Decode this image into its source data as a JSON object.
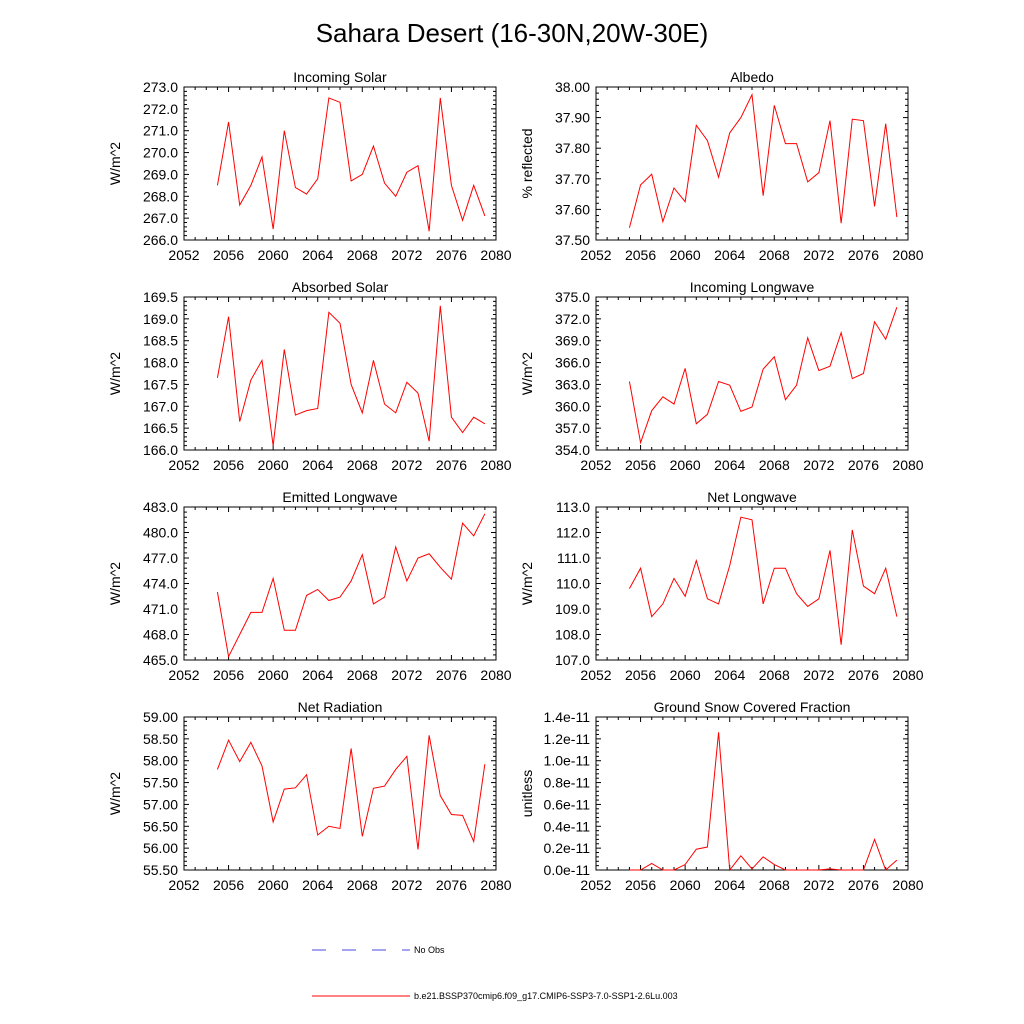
{
  "figure_title": "Sahara Desert (16-30N,20W-30E)",
  "legend": {
    "entries": [
      {
        "label": "No Obs",
        "color": "#4a4ae0",
        "dash": true
      },
      {
        "label": "b.e21.BSSP370cmip6.f09_g17.CMIP6-SSP3-7.0-SSP1-2.6Lu.003",
        "color": "#ff0000",
        "dash": false
      }
    ]
  },
  "chart_data": [
    {
      "type": "line",
      "title": "Incoming Solar",
      "ylabel": "W/m^2",
      "xlim": [
        2052,
        2080
      ],
      "ylim": [
        266,
        273
      ],
      "xticks": [
        2052,
        2056,
        2060,
        2064,
        2068,
        2072,
        2076,
        2080
      ],
      "yticks": [
        266,
        267,
        268,
        269,
        270,
        271,
        272,
        273
      ],
      "ytick_labels": [
        "266.0",
        "267.0",
        "268.0",
        "269.0",
        "270.0",
        "271.0",
        "272.0",
        "273.0"
      ],
      "x": [
        2055,
        2056,
        2057,
        2058,
        2059,
        2060,
        2061,
        2062,
        2063,
        2064,
        2065,
        2066,
        2067,
        2068,
        2069,
        2070,
        2071,
        2072,
        2073,
        2074,
        2075,
        2076,
        2077,
        2078,
        2079
      ],
      "series": [
        {
          "name": "b.e21.BSSP370cmip6.f09_g17.CMIP6-SSP3-7.0-SSP1-2.6Lu.003",
          "color": "#ff0000",
          "values": [
            268.5,
            271.4,
            267.6,
            268.5,
            269.8,
            266.5,
            271.0,
            268.4,
            268.1,
            268.8,
            272.5,
            272.3,
            268.7,
            269.0,
            270.3,
            268.6,
            268.0,
            269.1,
            269.4,
            266.4,
            272.5,
            268.5,
            266.9,
            268.5,
            267.1
          ]
        }
      ]
    },
    {
      "type": "line",
      "title": "Albedo",
      "ylabel": "% reflected",
      "xlim": [
        2052,
        2080
      ],
      "ylim": [
        37.5,
        38.0
      ],
      "xticks": [
        2052,
        2056,
        2060,
        2064,
        2068,
        2072,
        2076,
        2080
      ],
      "yticks": [
        37.5,
        37.6,
        37.7,
        37.8,
        37.9,
        38.0
      ],
      "ytick_labels": [
        "37.50",
        "37.60",
        "37.70",
        "37.80",
        "37.90",
        "38.00"
      ],
      "x": [
        2055,
        2056,
        2057,
        2058,
        2059,
        2060,
        2061,
        2062,
        2063,
        2064,
        2065,
        2066,
        2067,
        2068,
        2069,
        2070,
        2071,
        2072,
        2073,
        2074,
        2075,
        2076,
        2077,
        2078,
        2079
      ],
      "series": [
        {
          "name": "b.e21.BSSP370cmip6.f09_g17.CMIP6-SSP3-7.0-SSP1-2.6Lu.003",
          "color": "#ff0000",
          "values": [
            37.54,
            37.68,
            37.715,
            37.56,
            37.67,
            37.625,
            37.875,
            37.825,
            37.705,
            37.85,
            37.9,
            37.975,
            37.645,
            37.94,
            37.815,
            37.815,
            37.69,
            37.72,
            37.89,
            37.555,
            37.895,
            37.89,
            37.61,
            37.88,
            37.575
          ]
        }
      ]
    },
    {
      "type": "line",
      "title": "Absorbed Solar",
      "ylabel": "W/m^2",
      "xlim": [
        2052,
        2080
      ],
      "ylim": [
        166.0,
        169.5
      ],
      "xticks": [
        2052,
        2056,
        2060,
        2064,
        2068,
        2072,
        2076,
        2080
      ],
      "yticks": [
        166.0,
        166.5,
        167.0,
        167.5,
        168.0,
        168.5,
        169.0,
        169.5
      ],
      "ytick_labels": [
        "166.0",
        "166.5",
        "167.0",
        "167.5",
        "168.0",
        "168.5",
        "169.0",
        "169.5"
      ],
      "x": [
        2055,
        2056,
        2057,
        2058,
        2059,
        2060,
        2061,
        2062,
        2063,
        2064,
        2065,
        2066,
        2067,
        2068,
        2069,
        2070,
        2071,
        2072,
        2073,
        2074,
        2075,
        2076,
        2077,
        2078,
        2079
      ],
      "series": [
        {
          "name": "b.e21.BSSP370cmip6.f09_g17.CMIP6-SSP3-7.0-SSP1-2.6Lu.003",
          "color": "#ff0000",
          "values": [
            167.65,
            169.05,
            166.65,
            167.6,
            168.05,
            166.1,
            168.3,
            166.8,
            166.9,
            166.95,
            169.15,
            168.9,
            167.5,
            166.85,
            168.05,
            167.05,
            166.85,
            167.55,
            167.3,
            166.2,
            169.3,
            166.75,
            166.4,
            166.75,
            166.6
          ]
        }
      ]
    },
    {
      "type": "line",
      "title": "Incoming Longwave",
      "ylabel": "W/m^2",
      "xlim": [
        2052,
        2080
      ],
      "ylim": [
        354.0,
        375.0
      ],
      "xticks": [
        2052,
        2056,
        2060,
        2064,
        2068,
        2072,
        2076,
        2080
      ],
      "yticks": [
        354,
        357,
        360,
        363,
        366,
        369,
        372,
        375
      ],
      "ytick_labels": [
        "354.0",
        "357.0",
        "360.0",
        "363.0",
        "366.0",
        "369.0",
        "372.0",
        "375.0"
      ],
      "x": [
        2055,
        2056,
        2057,
        2058,
        2059,
        2060,
        2061,
        2062,
        2063,
        2064,
        2065,
        2066,
        2067,
        2068,
        2069,
        2070,
        2071,
        2072,
        2073,
        2074,
        2075,
        2076,
        2077,
        2078,
        2079
      ],
      "series": [
        {
          "name": "b.e21.BSSP370cmip6.f09_g17.CMIP6-SSP3-7.0-SSP1-2.6Lu.003",
          "color": "#ff0000",
          "values": [
            363.4,
            355.0,
            359.4,
            361.3,
            360.3,
            365.2,
            357.6,
            358.9,
            363.4,
            362.9,
            359.3,
            359.9,
            365.1,
            366.8,
            360.9,
            362.9,
            369.4,
            364.9,
            365.5,
            370.1,
            363.8,
            364.5,
            371.6,
            369.2,
            373.6
          ]
        }
      ]
    },
    {
      "type": "line",
      "title": "Emitted Longwave",
      "ylabel": "W/m^2",
      "xlim": [
        2052,
        2080
      ],
      "ylim": [
        465.0,
        483.0
      ],
      "xticks": [
        2052,
        2056,
        2060,
        2064,
        2068,
        2072,
        2076,
        2080
      ],
      "yticks": [
        465,
        468,
        471,
        474,
        477,
        480,
        483
      ],
      "ytick_labels": [
        "465.0",
        "468.0",
        "471.0",
        "474.0",
        "477.0",
        "480.0",
        "483.0"
      ],
      "x": [
        2055,
        2056,
        2057,
        2058,
        2059,
        2060,
        2061,
        2062,
        2063,
        2064,
        2065,
        2066,
        2067,
        2068,
        2069,
        2070,
        2071,
        2072,
        2073,
        2074,
        2075,
        2076,
        2077,
        2078,
        2079
      ],
      "series": [
        {
          "name": "b.e21.BSSP370cmip6.f09_g17.CMIP6-SSP3-7.0-SSP1-2.6Lu.003",
          "color": "#ff0000",
          "values": [
            473.0,
            465.4,
            468.0,
            470.6,
            470.6,
            474.6,
            468.5,
            468.5,
            472.6,
            473.3,
            472.0,
            472.4,
            474.3,
            477.4,
            471.6,
            472.4,
            478.3,
            474.3,
            477.0,
            477.5,
            475.9,
            474.5,
            481.1,
            479.6,
            482.2
          ]
        }
      ]
    },
    {
      "type": "line",
      "title": "Net Longwave",
      "ylabel": "W/m^2",
      "xlim": [
        2052,
        2080
      ],
      "ylim": [
        107.0,
        113.0
      ],
      "xticks": [
        2052,
        2056,
        2060,
        2064,
        2068,
        2072,
        2076,
        2080
      ],
      "yticks": [
        107,
        108,
        109,
        110,
        111,
        112,
        113
      ],
      "ytick_labels": [
        "107.0",
        "108.0",
        "109.0",
        "110.0",
        "111.0",
        "112.0",
        "113.0"
      ],
      "x": [
        2055,
        2056,
        2057,
        2058,
        2059,
        2060,
        2061,
        2062,
        2063,
        2064,
        2065,
        2066,
        2067,
        2068,
        2069,
        2070,
        2071,
        2072,
        2073,
        2074,
        2075,
        2076,
        2077,
        2078,
        2079
      ],
      "series": [
        {
          "name": "b.e21.BSSP370cmip6.f09_g17.CMIP6-SSP3-7.0-SSP1-2.6Lu.003",
          "color": "#ff0000",
          "values": [
            109.8,
            110.6,
            108.7,
            109.2,
            110.2,
            109.5,
            110.9,
            109.4,
            109.2,
            110.7,
            112.6,
            112.5,
            109.2,
            110.6,
            110.6,
            109.6,
            109.1,
            109.4,
            111.3,
            107.6,
            112.1,
            109.9,
            109.6,
            110.6,
            108.7
          ]
        }
      ]
    },
    {
      "type": "line",
      "title": "Net Radiation",
      "ylabel": "W/m^2",
      "xlim": [
        2052,
        2080
      ],
      "ylim": [
        55.5,
        59.0
      ],
      "xticks": [
        2052,
        2056,
        2060,
        2064,
        2068,
        2072,
        2076,
        2080
      ],
      "yticks": [
        55.5,
        56.0,
        56.5,
        57.0,
        57.5,
        58.0,
        58.5,
        59.0
      ],
      "ytick_labels": [
        "55.50",
        "56.00",
        "56.50",
        "57.00",
        "57.50",
        "58.00",
        "58.50",
        "59.00"
      ],
      "x": [
        2055,
        2056,
        2057,
        2058,
        2059,
        2060,
        2061,
        2062,
        2063,
        2064,
        2065,
        2066,
        2067,
        2068,
        2069,
        2070,
        2071,
        2072,
        2073,
        2074,
        2075,
        2076,
        2077,
        2078,
        2079
      ],
      "series": [
        {
          "name": "b.e21.BSSP370cmip6.f09_g17.CMIP6-SSP3-7.0-SSP1-2.6Lu.003",
          "color": "#ff0000",
          "values": [
            57.8,
            58.47,
            57.98,
            58.42,
            57.88,
            56.6,
            57.35,
            57.38,
            57.68,
            56.3,
            56.5,
            56.45,
            58.28,
            56.27,
            57.37,
            57.42,
            57.8,
            58.1,
            55.97,
            58.58,
            57.2,
            56.77,
            56.75,
            56.15,
            57.92
          ]
        }
      ]
    },
    {
      "type": "line",
      "title": "Ground Snow Covered Fraction",
      "ylabel": "unitless",
      "xlim": [
        2052,
        2080
      ],
      "ylim": [
        0,
        1.4e-11
      ],
      "xticks": [
        2052,
        2056,
        2060,
        2064,
        2068,
        2072,
        2076,
        2080
      ],
      "yticks": [
        0,
        2e-12,
        4e-12,
        6e-12,
        8e-12,
        1e-11,
        1.2e-11,
        1.4e-11
      ],
      "ytick_labels": [
        "0.0e-11",
        "0.2e-11",
        "0.4e-11",
        "0.6e-11",
        "0.8e-11",
        "1.0e-11",
        "1.2e-11",
        "1.4e-11"
      ],
      "x": [
        2055,
        2056,
        2057,
        2058,
        2059,
        2060,
        2061,
        2062,
        2063,
        2064,
        2065,
        2066,
        2067,
        2068,
        2069,
        2070,
        2071,
        2072,
        2073,
        2074,
        2075,
        2076,
        2077,
        2078,
        2079
      ],
      "series": [
        {
          "name": "b.e21.BSSP370cmip6.f09_g17.CMIP6-SSP3-7.0-SSP1-2.6Lu.003",
          "color": "#ff0000",
          "values": [
            0,
            0,
            6e-13,
            0,
            0,
            5e-13,
            1.9e-12,
            2.1e-12,
            1.26e-11,
            0,
            1.3e-12,
            1e-13,
            1.2e-12,
            5e-13,
            0,
            0,
            0,
            0,
            1e-13,
            0,
            0,
            0,
            2.8e-12,
            0,
            9e-13
          ]
        }
      ]
    }
  ]
}
